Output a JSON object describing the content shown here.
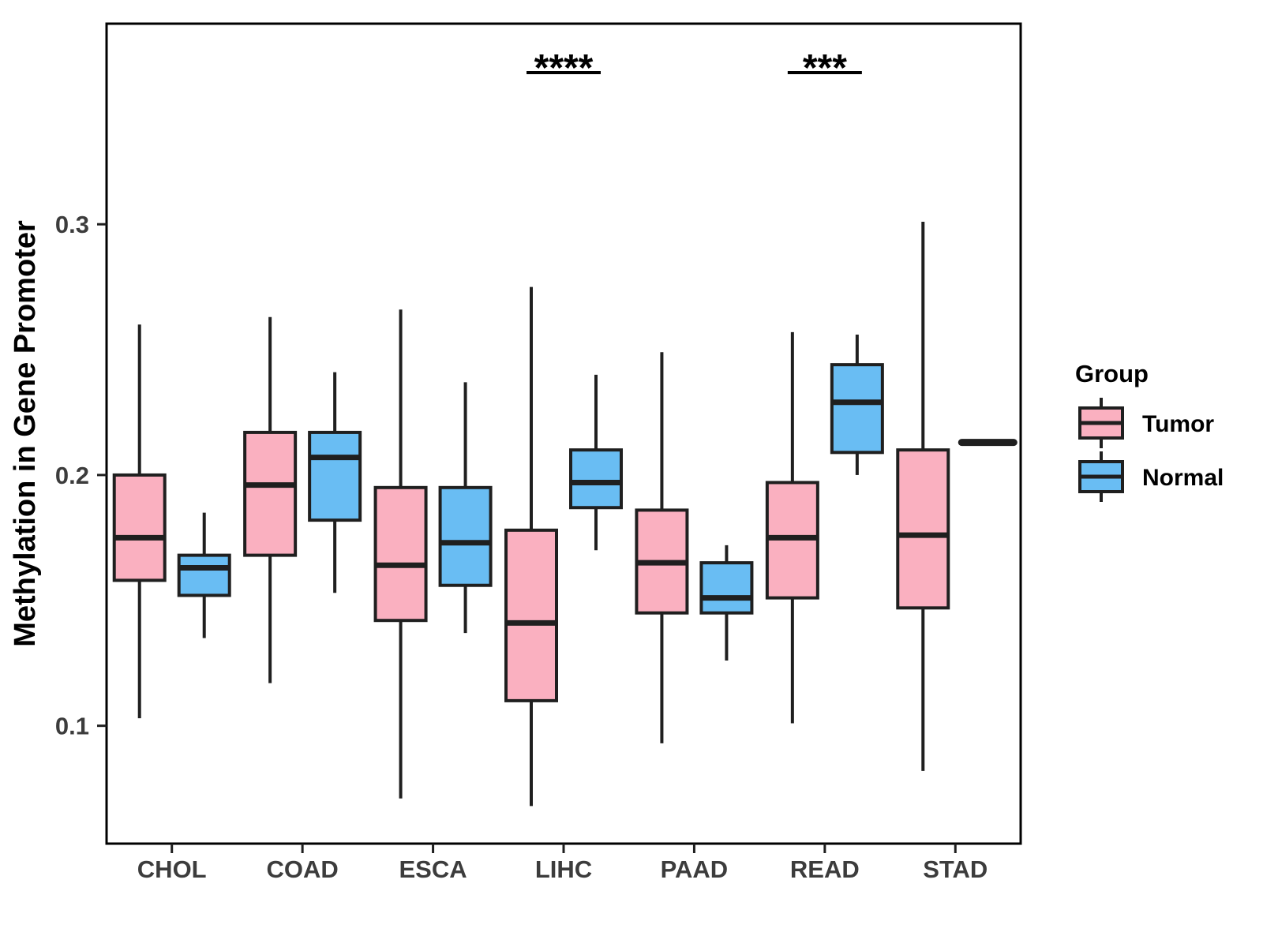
{
  "figure": {
    "legend": {
      "title": "Group",
      "items": [
        {
          "label": "Tumor",
          "color": "#FAB0C0"
        },
        {
          "label": "Normal",
          "color": "#69BDF3"
        }
      ]
    }
  },
  "chart_data": {
    "type": "boxplot",
    "orientation": "vertical",
    "title": "",
    "xlabel": "",
    "ylabel": "Methylation in Gene Promoter",
    "categories": [
      "CHOL",
      "COAD",
      "ESCA",
      "LIHC",
      "PAAD",
      "READ",
      "STAD"
    ],
    "yticks": [
      0.1,
      0.2,
      0.3
    ],
    "ylim": [
      0.053,
      0.38
    ],
    "grid": false,
    "legend_position": "right",
    "legend_title": "Group",
    "series": [
      {
        "name": "Tumor",
        "color": "#FAB0C0",
        "boxes": [
          {
            "category": "CHOL",
            "whisker_low": 0.103,
            "q1": 0.158,
            "median": 0.175,
            "q3": 0.2,
            "whisker_high": 0.26
          },
          {
            "category": "COAD",
            "whisker_low": 0.117,
            "q1": 0.168,
            "median": 0.196,
            "q3": 0.217,
            "whisker_high": 0.263
          },
          {
            "category": "ESCA",
            "whisker_low": 0.071,
            "q1": 0.142,
            "median": 0.164,
            "q3": 0.195,
            "whisker_high": 0.266
          },
          {
            "category": "LIHC",
            "whisker_low": 0.068,
            "q1": 0.11,
            "median": 0.141,
            "q3": 0.178,
            "whisker_high": 0.275
          },
          {
            "category": "PAAD",
            "whisker_low": 0.093,
            "q1": 0.145,
            "median": 0.165,
            "q3": 0.186,
            "whisker_high": 0.249
          },
          {
            "category": "READ",
            "whisker_low": 0.101,
            "q1": 0.151,
            "median": 0.175,
            "q3": 0.197,
            "whisker_high": 0.257
          },
          {
            "category": "STAD",
            "whisker_low": 0.082,
            "q1": 0.147,
            "median": 0.176,
            "q3": 0.21,
            "whisker_high": 0.301
          }
        ]
      },
      {
        "name": "Normal",
        "color": "#69BDF3",
        "boxes": [
          {
            "category": "CHOL",
            "whisker_low": 0.135,
            "q1": 0.152,
            "median": 0.163,
            "q3": 0.168,
            "whisker_high": 0.185
          },
          {
            "category": "COAD",
            "whisker_low": 0.153,
            "q1": 0.182,
            "median": 0.207,
            "q3": 0.217,
            "whisker_high": 0.241
          },
          {
            "category": "ESCA",
            "whisker_low": 0.137,
            "q1": 0.156,
            "median": 0.173,
            "q3": 0.195,
            "whisker_high": 0.237
          },
          {
            "category": "LIHC",
            "whisker_low": 0.17,
            "q1": 0.187,
            "median": 0.197,
            "q3": 0.21,
            "whisker_high": 0.24
          },
          {
            "category": "PAAD",
            "whisker_low": 0.126,
            "q1": 0.145,
            "median": 0.151,
            "q3": 0.165,
            "whisker_high": 0.172
          },
          {
            "category": "READ",
            "whisker_low": 0.2,
            "q1": 0.209,
            "median": 0.229,
            "q3": 0.244,
            "whisker_high": 0.256
          },
          {
            "category": "STAD",
            "single_value": 0.213,
            "median": 0.213
          }
        ]
      }
    ],
    "annotations": [
      {
        "category": "LIHC",
        "label": "****"
      },
      {
        "category": "READ",
        "label": "***"
      }
    ],
    "colors": {
      "box_outline": "#1F1F1F",
      "axis_text": "#3C3C3C",
      "panel_border": "#000000",
      "background": "#FFFFFF"
    }
  }
}
